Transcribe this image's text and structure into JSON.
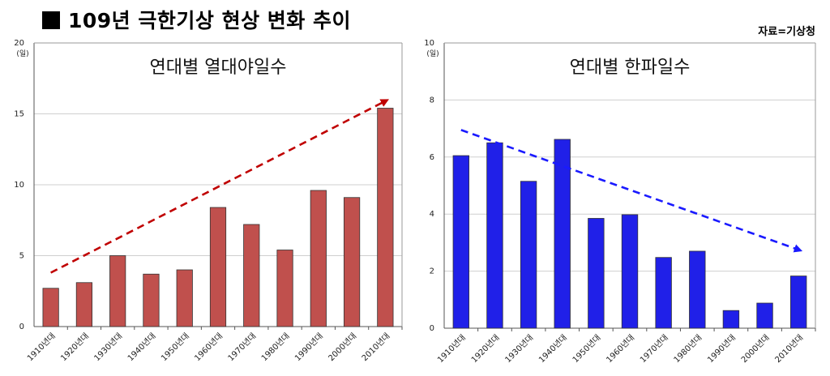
{
  "header": {
    "title": "109년 극한기상 현상 변화 추이",
    "source": "자료=기상청"
  },
  "chart_data": [
    {
      "type": "bar",
      "title": "연대별 열대야일수",
      "ylabel": "(일)",
      "categories": [
        "1910년대",
        "1920년대",
        "1930년대",
        "1940년대",
        "1950년대",
        "1960년대",
        "1970년대",
        "1980년대",
        "1990년대",
        "2000년대",
        "2010년대"
      ],
      "values": [
        2.7,
        3.1,
        5.0,
        3.7,
        4.0,
        8.4,
        7.2,
        5.4,
        9.6,
        9.1,
        15.4
      ],
      "ylim": [
        0,
        20
      ],
      "yticks": [
        0,
        5,
        10,
        15,
        20
      ],
      "bar_color": "#c0504d",
      "trend": {
        "from": 3.8,
        "to": 15.9,
        "color": "#c00000",
        "direction": "up"
      },
      "grid": true
    },
    {
      "type": "bar",
      "title": "연대별 한파일수",
      "ylabel": "(일)",
      "categories": [
        "1910년대",
        "1920년대",
        "1930년대",
        "1940년대",
        "1950년대",
        "1960년대",
        "1970년대",
        "1980년대",
        "1990년대",
        "2000년대",
        "2010년대"
      ],
      "values": [
        6.05,
        6.5,
        5.15,
        6.62,
        3.85,
        3.98,
        2.48,
        2.7,
        0.62,
        0.88,
        1.83
      ],
      "ylim": [
        0,
        10
      ],
      "yticks": [
        0,
        2,
        4,
        6,
        8,
        10
      ],
      "bar_color": "#2020e8",
      "trend": {
        "from": 6.95,
        "to": 2.75,
        "color": "#1a1aff",
        "direction": "down"
      },
      "grid": true
    }
  ]
}
